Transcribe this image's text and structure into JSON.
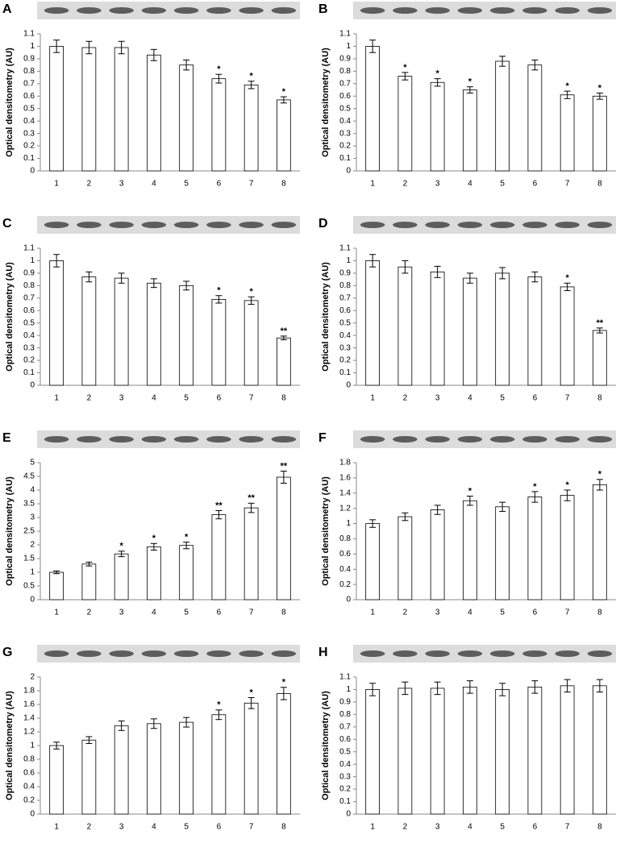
{
  "chart_data": [
    {
      "type": "bar",
      "label": "A",
      "y_label": "Optical densitometry (AU)",
      "color": "#ffffff",
      "edge_color": "#000000",
      "categories": [
        "1",
        "2",
        "3",
        "4",
        "5",
        "6",
        "7",
        "8"
      ],
      "values": [
        1,
        0.99,
        0.99,
        0.93,
        0.85,
        0.74,
        0.69,
        0.57
      ],
      "errors": [
        0.05,
        0.05,
        0.05,
        0.045,
        0.04,
        0.035,
        0.03,
        0.025
      ],
      "annotations": [
        null,
        null,
        null,
        null,
        null,
        "*",
        "*",
        "*"
      ],
      "ylim": [
        0,
        1.1
      ],
      "yticks": [
        0,
        0.1,
        0.2,
        0.3,
        0.4,
        0.5,
        0.6,
        0.7,
        0.8,
        0.9,
        1,
        1.1
      ]
    },
    {
      "type": "bar",
      "label": "B",
      "y_label": "Optical densitometry (AU)",
      "color": "#ffffff",
      "edge_color": "#000000",
      "categories": [
        "1",
        "2",
        "3",
        "4",
        "5",
        "6",
        "7",
        "8"
      ],
      "values": [
        1,
        0.76,
        0.71,
        0.65,
        0.88,
        0.85,
        0.61,
        0.6
      ],
      "errors": [
        0.05,
        0.03,
        0.03,
        0.025,
        0.04,
        0.04,
        0.03,
        0.025
      ],
      "annotations": [
        null,
        "*",
        "*",
        "*",
        null,
        null,
        "*",
        "*"
      ],
      "ylim": [
        0,
        1.1
      ],
      "yticks": [
        0,
        0.1,
        0.2,
        0.3,
        0.4,
        0.5,
        0.6,
        0.7,
        0.8,
        0.9,
        1,
        1.1
      ]
    },
    {
      "type": "bar",
      "label": "C",
      "y_label": "Optical densitometry (AU)",
      "color": "#ffffff",
      "edge_color": "#000000",
      "categories": [
        "1",
        "2",
        "3",
        "4",
        "5",
        "6",
        "7",
        "8"
      ],
      "values": [
        1,
        0.87,
        0.86,
        0.82,
        0.8,
        0.69,
        0.68,
        0.38
      ],
      "errors": [
        0.05,
        0.04,
        0.04,
        0.035,
        0.035,
        0.03,
        0.03,
        0.015
      ],
      "annotations": [
        null,
        null,
        null,
        null,
        null,
        "*",
        "*",
        "**"
      ],
      "ylim": [
        0,
        1.1
      ],
      "yticks": [
        0,
        0.1,
        0.2,
        0.3,
        0.4,
        0.5,
        0.6,
        0.7,
        0.8,
        0.9,
        1,
        1.1
      ]
    },
    {
      "type": "bar",
      "label": "D",
      "y_label": "Optical densitometry (AU)",
      "color": "#ffffff",
      "edge_color": "#000000",
      "categories": [
        "1",
        "2",
        "3",
        "4",
        "5",
        "6",
        "7",
        "8"
      ],
      "values": [
        1,
        0.95,
        0.91,
        0.86,
        0.9,
        0.87,
        0.79,
        0.44
      ],
      "errors": [
        0.05,
        0.05,
        0.045,
        0.04,
        0.045,
        0.04,
        0.03,
        0.02
      ],
      "annotations": [
        null,
        null,
        null,
        null,
        null,
        null,
        "*",
        "**"
      ],
      "ylim": [
        0,
        1.1
      ],
      "yticks": [
        0,
        0.1,
        0.2,
        0.3,
        0.4,
        0.5,
        0.6,
        0.7,
        0.8,
        0.9,
        1,
        1.1
      ]
    },
    {
      "type": "bar",
      "label": "E",
      "y_label": "Optical densitometry (AU)",
      "color": "#ffffff",
      "edge_color": "#000000",
      "categories": [
        "1",
        "2",
        "3",
        "4",
        "5",
        "6",
        "7",
        "8"
      ],
      "values": [
        1,
        1.3,
        1.67,
        1.93,
        1.98,
        3.1,
        3.35,
        4.47
      ],
      "errors": [
        0.05,
        0.07,
        0.1,
        0.12,
        0.12,
        0.15,
        0.17,
        0.22
      ],
      "annotations": [
        null,
        null,
        "*",
        "*",
        "*",
        "**",
        "**",
        "**"
      ],
      "ylim": [
        0,
        5
      ],
      "yticks": [
        0,
        0.5,
        1,
        1.5,
        2,
        2.5,
        3,
        3.5,
        4,
        4.5,
        5
      ]
    },
    {
      "type": "bar",
      "label": "F",
      "y_label": "Optical densitometry (AU)",
      "color": "#ffffff",
      "edge_color": "#000000",
      "categories": [
        "1",
        "2",
        "3",
        "4",
        "5",
        "6",
        "7",
        "8"
      ],
      "values": [
        1,
        1.09,
        1.18,
        1.3,
        1.22,
        1.35,
        1.37,
        1.51
      ],
      "errors": [
        0.05,
        0.05,
        0.06,
        0.06,
        0.06,
        0.07,
        0.07,
        0.07
      ],
      "annotations": [
        null,
        null,
        null,
        "*",
        null,
        "*",
        "*",
        "*"
      ],
      "ylim": [
        0,
        1.8
      ],
      "yticks": [
        0,
        0.2,
        0.4,
        0.6,
        0.8,
        1,
        1.2,
        1.4,
        1.6,
        1.8
      ]
    },
    {
      "type": "bar",
      "label": "G",
      "y_label": "Optical densitometry (AU)",
      "color": "#ffffff",
      "edge_color": "#000000",
      "categories": [
        "1",
        "2",
        "3",
        "4",
        "5",
        "6",
        "7",
        "8"
      ],
      "values": [
        1,
        1.08,
        1.29,
        1.32,
        1.34,
        1.45,
        1.62,
        1.76
      ],
      "errors": [
        0.05,
        0.05,
        0.07,
        0.07,
        0.07,
        0.07,
        0.08,
        0.09
      ],
      "annotations": [
        null,
        null,
        null,
        null,
        null,
        "*",
        "*",
        "*"
      ],
      "ylim": [
        0,
        2
      ],
      "yticks": [
        0,
        0.2,
        0.4,
        0.6,
        0.8,
        1,
        1.2,
        1.4,
        1.6,
        1.8,
        2
      ]
    },
    {
      "type": "bar",
      "label": "H",
      "y_label": "Optical densitometry (AU)",
      "color": "#ffffff",
      "edge_color": "#000000",
      "categories": [
        "1",
        "2",
        "3",
        "4",
        "5",
        "6",
        "7",
        "8"
      ],
      "values": [
        1,
        1.01,
        1.01,
        1.02,
        1,
        1.02,
        1.03,
        1.03
      ],
      "errors": [
        0.05,
        0.05,
        0.05,
        0.05,
        0.05,
        0.05,
        0.05,
        0.05
      ],
      "annotations": [
        null,
        null,
        null,
        null,
        null,
        null,
        null,
        null
      ],
      "ylim": [
        0,
        1.1
      ],
      "yticks": [
        0,
        0.1,
        0.2,
        0.3,
        0.4,
        0.5,
        0.6,
        0.7,
        0.8,
        0.9,
        1,
        1.1
      ]
    }
  ]
}
